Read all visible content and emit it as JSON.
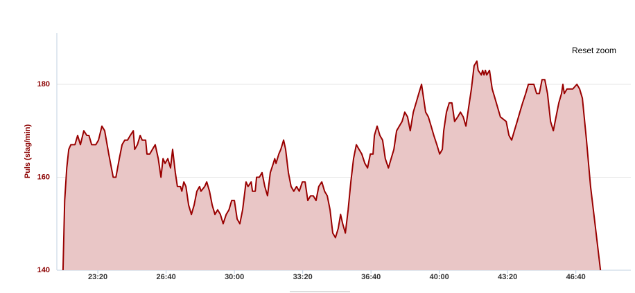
{
  "chart_data": {
    "type": "area",
    "y_label": "Puls (slag/min)",
    "color": "#990000",
    "fill_color": "#e9c6c6",
    "grid": true,
    "xlim": [
      1280,
      2961
    ],
    "ylim": [
      140,
      191
    ],
    "xticks": [
      {
        "value": 1400,
        "label": "23:20"
      },
      {
        "value": 1600,
        "label": "26:40"
      },
      {
        "value": 1800,
        "label": "30:00"
      },
      {
        "value": 2000,
        "label": "33:20"
      },
      {
        "value": 2200,
        "label": "36:40"
      },
      {
        "value": 2400,
        "label": "40:00"
      },
      {
        "value": 2600,
        "label": "43:20"
      },
      {
        "value": 2800,
        "label": "46:40"
      }
    ],
    "yticks": [
      140,
      160,
      180
    ],
    "x": [
      1298,
      1303,
      1309,
      1315,
      1321,
      1333,
      1341,
      1349,
      1359,
      1368,
      1374,
      1382,
      1394,
      1402,
      1412,
      1420,
      1432,
      1445,
      1453,
      1463,
      1471,
      1479,
      1487,
      1495,
      1504,
      1508,
      1516,
      1524,
      1530,
      1540,
      1544,
      1552,
      1560,
      1568,
      1577,
      1585,
      1591,
      1597,
      1605,
      1613,
      1619,
      1627,
      1633,
      1642,
      1646,
      1652,
      1658,
      1666,
      1674,
      1682,
      1690,
      1698,
      1702,
      1713,
      1719,
      1727,
      1735,
      1743,
      1751,
      1759,
      1767,
      1776,
      1784,
      1792,
      1800,
      1808,
      1816,
      1824,
      1834,
      1840,
      1849,
      1853,
      1861,
      1865,
      1873,
      1881,
      1889,
      1897,
      1905,
      1914,
      1918,
      1922,
      1930,
      1936,
      1944,
      1950,
      1958,
      1966,
      1974,
      1982,
      1990,
      1999,
      2007,
      2015,
      2023,
      2031,
      2039,
      2047,
      2056,
      2064,
      2072,
      2080,
      2088,
      2096,
      2104,
      2111,
      2117,
      2125,
      2133,
      2141,
      2149,
      2157,
      2165,
      2173,
      2182,
      2190,
      2198,
      2206,
      2210,
      2218,
      2226,
      2234,
      2242,
      2251,
      2259,
      2267,
      2275,
      2283,
      2291,
      2299,
      2307,
      2315,
      2324,
      2332,
      2340,
      2348,
      2356,
      2360,
      2368,
      2376,
      2384,
      2393,
      2401,
      2409,
      2413,
      2421,
      2429,
      2437,
      2445,
      2454,
      2462,
      2470,
      2478,
      2486,
      2494,
      2502,
      2510,
      2514,
      2523,
      2527,
      2531,
      2535,
      2539,
      2547,
      2555,
      2563,
      2571,
      2579,
      2596,
      2604,
      2612,
      2620,
      2628,
      2636,
      2644,
      2653,
      2661,
      2669,
      2677,
      2685,
      2693,
      2701,
      2709,
      2717,
      2726,
      2734,
      2742,
      2750,
      2758,
      2762,
      2766,
      2774,
      2782,
      2791,
      2803,
      2811,
      2819,
      2831,
      2843,
      2856,
      2872
    ],
    "values": [
      140,
      155,
      162,
      166,
      167,
      167,
      169,
      167,
      170,
      169,
      169,
      167,
      167,
      168,
      171,
      170,
      165,
      160,
      160,
      164,
      167,
      168,
      168,
      169,
      170,
      166,
      167,
      169,
      168,
      168,
      165,
      165,
      166,
      167,
      164,
      160,
      164,
      163,
      164,
      162,
      166,
      161,
      158,
      158,
      157,
      159,
      158,
      154,
      152,
      154,
      157,
      158,
      157,
      158,
      159,
      157,
      154,
      152,
      153,
      152,
      150,
      152,
      153,
      155,
      155,
      151,
      150,
      153,
      159,
      158,
      159,
      157,
      157,
      160,
      160,
      161,
      158,
      156,
      161,
      163,
      164,
      163,
      165,
      166,
      168,
      166,
      161,
      158,
      157,
      158,
      157,
      159,
      159,
      155,
      156,
      156,
      155,
      158,
      159,
      157,
      156,
      153,
      148,
      147,
      149,
      152,
      150,
      148,
      153,
      159,
      164,
      167,
      166,
      165,
      163,
      162,
      165,
      165,
      169,
      171,
      169,
      168,
      164,
      162,
      164,
      166,
      170,
      171,
      172,
      174,
      173,
      170,
      174,
      176,
      178,
      180,
      176,
      174,
      173,
      171,
      169,
      167,
      165,
      166,
      170,
      174,
      176,
      176,
      172,
      173,
      174,
      173,
      171,
      175,
      179,
      184,
      185,
      183,
      182,
      183,
      182,
      183,
      182,
      183,
      179,
      177,
      175,
      173,
      172,
      169,
      168,
      170,
      172,
      174,
      176,
      178,
      180,
      180,
      180,
      178,
      178,
      181,
      181,
      178,
      172,
      170,
      173,
      176,
      178,
      180,
      178,
      179,
      179,
      179,
      180,
      179,
      177,
      168,
      158,
      150,
      140
    ]
  },
  "button": "Reset zoom"
}
